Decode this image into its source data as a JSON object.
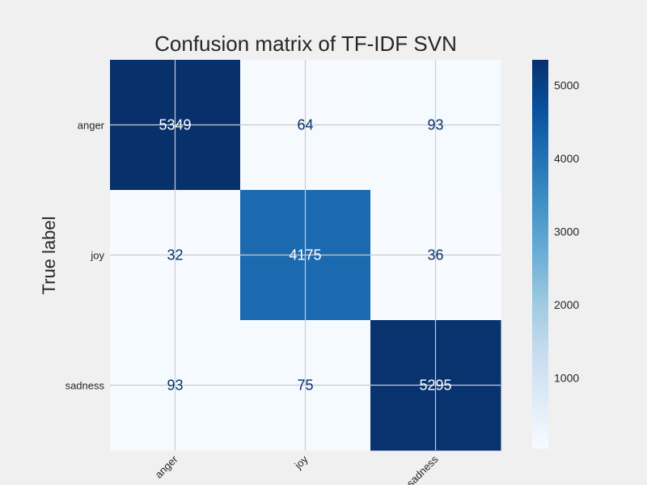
{
  "chart_data": {
    "type": "heatmap",
    "title": "Confusion matrix of TF-IDF SVN",
    "ylabel": "True label",
    "xlabel": "",
    "x_categories": [
      "anger",
      "joy",
      "sadness"
    ],
    "y_categories": [
      "anger",
      "joy",
      "sadness"
    ],
    "values": [
      [
        5349,
        64,
        93
      ],
      [
        32,
        4175,
        36
      ],
      [
        93,
        75,
        5295
      ]
    ],
    "colormap": "Blues",
    "colorbar": {
      "range": [
        32,
        5349
      ],
      "ticks": [
        1000,
        2000,
        3000,
        4000,
        5000
      ]
    },
    "grid": true
  }
}
